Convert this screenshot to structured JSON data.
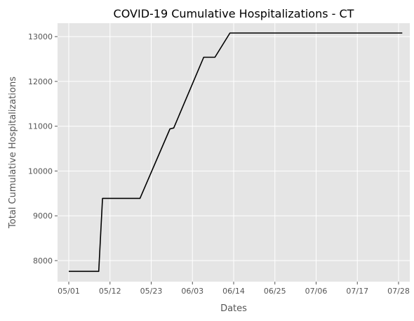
{
  "chart_data": {
    "type": "line",
    "title": "COVID-19 Cumulative Hospitalizations - CT",
    "xlabel": "Dates",
    "ylabel": "Total Cumulative Hospitalizations",
    "x_ticks": [
      "05/01",
      "05/12",
      "05/23",
      "06/03",
      "06/14",
      "06/25",
      "07/06",
      "07/17",
      "07/28"
    ],
    "y_ticks": [
      8000,
      9000,
      10000,
      11000,
      12000,
      13000
    ],
    "ylim": [
      7530,
      13300
    ],
    "xlim": [
      "04/28",
      "07/31"
    ],
    "grid": true,
    "series": [
      {
        "color": "#000000",
        "points": [
          [
            "05/01",
            7760
          ],
          [
            "05/09",
            7760
          ],
          [
            "05/10",
            9390
          ],
          [
            "05/20",
            9390
          ],
          [
            "05/28",
            10940
          ],
          [
            "05/29",
            10960
          ],
          [
            "06/06",
            12540
          ],
          [
            "06/09",
            12540
          ],
          [
            "06/13",
            13080
          ],
          [
            "07/29",
            13080
          ]
        ]
      }
    ]
  }
}
